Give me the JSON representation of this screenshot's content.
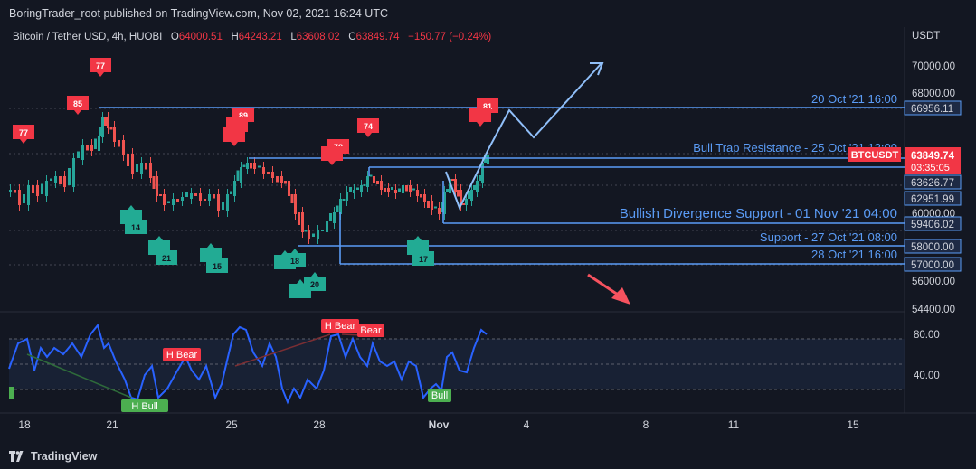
{
  "header": {
    "publish_line": "BoringTrader_root published on TradingView.com, Nov 02, 2021 16:24 UTC"
  },
  "symbol": {
    "name": "Bitcoin / Tether USD, 4h, HUOBI",
    "open_label": "O",
    "open": "64000.51",
    "high_label": "H",
    "high": "64243.21",
    "low_label": "L",
    "low": "63608.02",
    "close_label": "C",
    "close": "63849.74",
    "change": "−150.77 (−0.24%)"
  },
  "currency": {
    "label": "USDT"
  },
  "price_axis": {
    "ticks": [
      "70000.00",
      "68000.00",
      "60000.00",
      "56000.00",
      "54400.00"
    ],
    "labels": [
      {
        "text": "66956.11"
      },
      {
        "text": "63626.77"
      },
      {
        "text": "62951.99"
      },
      {
        "text": "59406.02"
      },
      {
        "text": "58000.00"
      },
      {
        "text": "57000.00"
      }
    ],
    "btc_badge": {
      "symbol": "BTCUSDT",
      "price": "63849.74",
      "countdown": "03:35:05",
      "color": "#f23645"
    }
  },
  "osc_axis": {
    "ticks": [
      "80.00",
      "40.00"
    ]
  },
  "time_axis": {
    "ticks": [
      "18",
      "21",
      "25",
      "28",
      "Nov",
      "4",
      "8",
      "11",
      "15"
    ]
  },
  "annotations": {
    "res_20oct": "20 Oct '21 16:00",
    "bull_trap": "Bull Trap Resistance - 25 Oct '21 12:00",
    "bull_div": "Bullish Divergence Support - 01 Nov '21 04:00",
    "support_27": "Support - 27 Oct '21 08:00",
    "support_28": "28 Oct '21 16:00"
  },
  "markers": {
    "red": [
      "77",
      "85",
      "77",
      "89",
      "78",
      "74",
      "81"
    ],
    "green": [
      "14",
      "21",
      "15",
      "18",
      "20",
      "17"
    ]
  },
  "osc_labels": {
    "h_bear_1": "H Bear",
    "h_bear_2": "H Bear",
    "bear": "Bear",
    "h_bull": "H Bull",
    "bull": "Bull"
  },
  "colors": {
    "background": "#131722",
    "up": "#26a69a",
    "down": "#ef5350",
    "line_blue": "#5b9cf6",
    "osc_line": "#2962ff",
    "red_marker": "#f23645",
    "green_marker": "#22ab94"
  },
  "footer": {
    "brand": "TradingView"
  }
}
